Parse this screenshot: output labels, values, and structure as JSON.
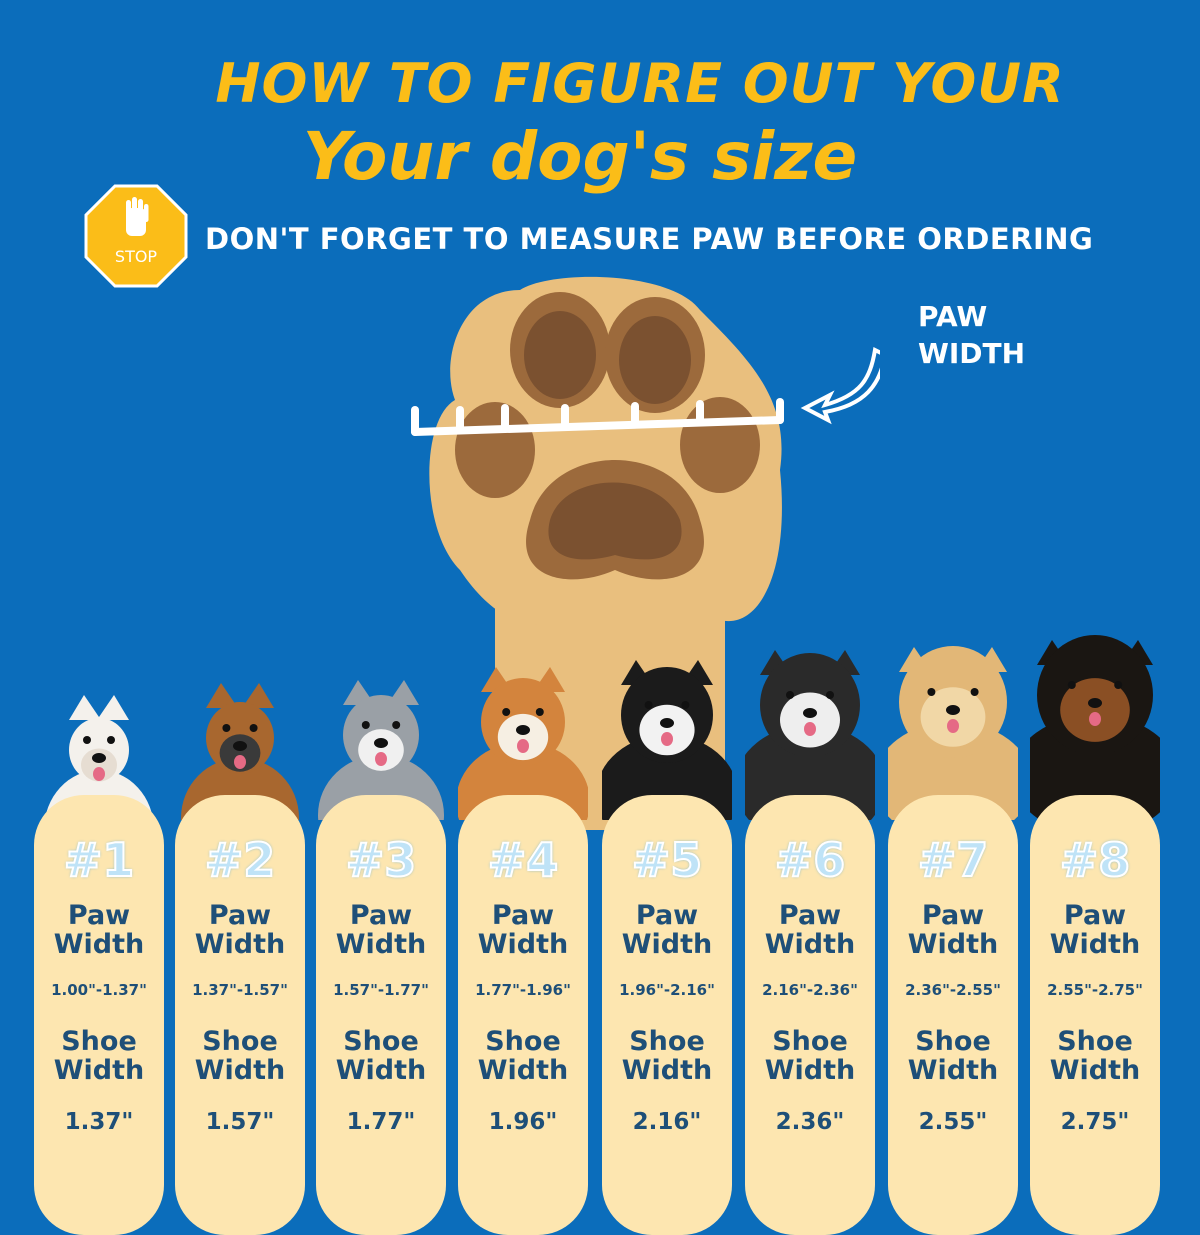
{
  "header": {
    "title_line1": "HOW TO FIGURE OUT YOUR",
    "title_line2": "Your dog's size",
    "stop_sign_text": "STOP",
    "notice": "DON'T FORGET TO MEASURE PAW BEFORE ORDERING"
  },
  "diagram": {
    "paw_label": [
      "PAW",
      "WIDTH"
    ],
    "icons": [
      "stop-sign-icon",
      "hand-icon",
      "paw-icon",
      "ruler-icon",
      "arrow-icon"
    ]
  },
  "colors": {
    "background": "#0b6dbb",
    "title": "#fbbd18",
    "card": "#fde6b0",
    "card_text": "#1e4f78",
    "paw": "#e9bf7e"
  },
  "sizes": [
    {
      "number": "#1",
      "paw_label": [
        "Paw",
        "Width"
      ],
      "paw_width": "1.00\"-1.37\"",
      "shoe_label": [
        "Shoe",
        "Width"
      ],
      "shoe_width": "1.37\""
    },
    {
      "number": "#2",
      "paw_label": [
        "Paw",
        "Width"
      ],
      "paw_width": "1.37\"-1.57\"",
      "shoe_label": [
        "Shoe",
        "Width"
      ],
      "shoe_width": "1.57\""
    },
    {
      "number": "#3",
      "paw_label": [
        "Paw",
        "Width"
      ],
      "paw_width": "1.57\"-1.77\"",
      "shoe_label": [
        "Shoe",
        "Width"
      ],
      "shoe_width": "1.77\""
    },
    {
      "number": "#4",
      "paw_label": [
        "Paw",
        "Width"
      ],
      "paw_width": "1.77\"-1.96\"",
      "shoe_label": [
        "Shoe",
        "Width"
      ],
      "shoe_width": "1.96\""
    },
    {
      "number": "#5",
      "paw_label": [
        "Paw",
        "Width"
      ],
      "paw_width": "1.96\"-2.16\"",
      "shoe_label": [
        "Shoe",
        "Width"
      ],
      "shoe_width": "2.16\""
    },
    {
      "number": "#6",
      "paw_label": [
        "Paw",
        "Width"
      ],
      "paw_width": "2.16\"-2.36\"",
      "shoe_label": [
        "Shoe",
        "Width"
      ],
      "shoe_width": "2.36\""
    },
    {
      "number": "#7",
      "paw_label": [
        "Paw",
        "Width"
      ],
      "paw_width": "2.36\"-2.55\"",
      "shoe_label": [
        "Shoe",
        "Width"
      ],
      "shoe_width": "2.55\""
    },
    {
      "number": "#8",
      "paw_label": [
        "Paw",
        "Width"
      ],
      "paw_width": "2.55\"-2.75\"",
      "shoe_label": [
        "Shoe",
        "Width"
      ],
      "shoe_width": "2.75\""
    }
  ]
}
